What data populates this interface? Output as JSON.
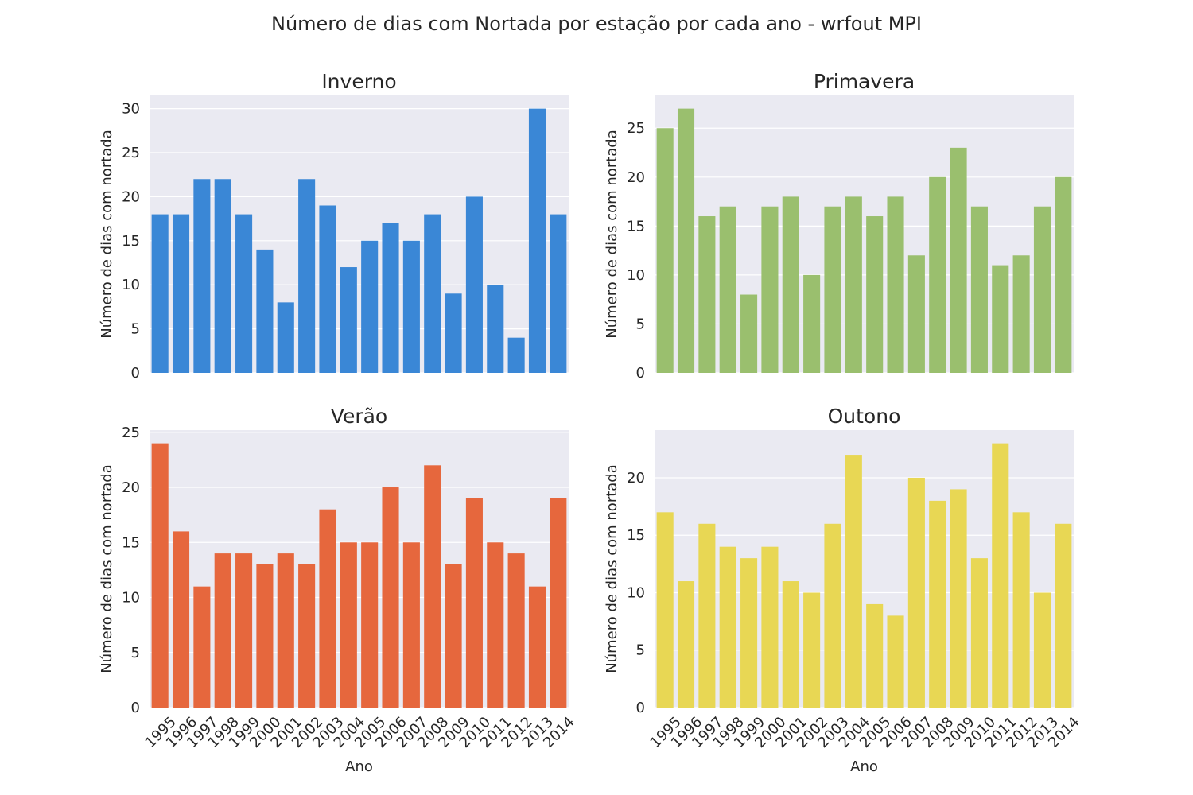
{
  "title": "Número de dias com Nortada por estação por cada ano - wrfout MPI",
  "chart_data": [
    {
      "type": "bar",
      "title": "Inverno",
      "color": "#3a87d6",
      "xlabel": "",
      "ylabel": "Número de dias com nortada",
      "categories": [
        "1995",
        "1996",
        "1997",
        "1998",
        "1999",
        "2000",
        "2001",
        "2002",
        "2003",
        "2004",
        "2005",
        "2006",
        "2007",
        "2008",
        "2009",
        "2010",
        "2011",
        "2012",
        "2013",
        "2014"
      ],
      "values": [
        18,
        18,
        22,
        22,
        18,
        14,
        8,
        22,
        19,
        12,
        15,
        17,
        15,
        18,
        9,
        20,
        10,
        4,
        30,
        18
      ],
      "ylim": [
        0,
        31.5
      ],
      "yticks": [
        0,
        5,
        10,
        15,
        20,
        25,
        30
      ],
      "show_xticklabels": false,
      "grid": true
    },
    {
      "type": "bar",
      "title": "Primavera",
      "color": "#9abf6e",
      "xlabel": "",
      "ylabel": "Número de dias com nortada",
      "categories": [
        "1995",
        "1996",
        "1997",
        "1998",
        "1999",
        "2000",
        "2001",
        "2002",
        "2003",
        "2004",
        "2005",
        "2006",
        "2007",
        "2008",
        "2009",
        "2010",
        "2011",
        "2012",
        "2013",
        "2014"
      ],
      "values": [
        25,
        27,
        16,
        17,
        8,
        17,
        18,
        10,
        17,
        18,
        16,
        18,
        12,
        20,
        23,
        17,
        11,
        12,
        17,
        20
      ],
      "ylim": [
        0,
        28.35
      ],
      "yticks": [
        0,
        5,
        10,
        15,
        20,
        25
      ],
      "show_xticklabels": false,
      "grid": true
    },
    {
      "type": "bar",
      "title": "Verão",
      "color": "#e6673d",
      "xlabel": "Ano",
      "ylabel": "Número de dias com nortada",
      "categories": [
        "1995",
        "1996",
        "1997",
        "1998",
        "1999",
        "2000",
        "2001",
        "2002",
        "2003",
        "2004",
        "2005",
        "2006",
        "2007",
        "2008",
        "2009",
        "2010",
        "2011",
        "2012",
        "2013",
        "2014"
      ],
      "values": [
        24,
        16,
        11,
        14,
        14,
        13,
        14,
        13,
        18,
        15,
        15,
        20,
        15,
        22,
        13,
        19,
        15,
        14,
        11,
        19
      ],
      "ylim": [
        0,
        25.2
      ],
      "yticks": [
        0,
        5,
        10,
        15,
        20,
        25
      ],
      "show_xticklabels": true,
      "grid": true
    },
    {
      "type": "bar",
      "title": "Outono",
      "color": "#e8d754",
      "xlabel": "Ano",
      "ylabel": "Número de dias com nortada",
      "categories": [
        "1995",
        "1996",
        "1997",
        "1998",
        "1999",
        "2000",
        "2001",
        "2002",
        "2003",
        "2004",
        "2005",
        "2006",
        "2007",
        "2008",
        "2009",
        "2010",
        "2011",
        "2012",
        "2013",
        "2014"
      ],
      "values": [
        17,
        11,
        16,
        14,
        13,
        14,
        11,
        10,
        16,
        22,
        9,
        8,
        20,
        18,
        19,
        13,
        23,
        17,
        10,
        16
      ],
      "ylim": [
        0,
        24.15
      ],
      "yticks": [
        0,
        5,
        10,
        15,
        20
      ],
      "show_xticklabels": true,
      "grid": true
    }
  ]
}
